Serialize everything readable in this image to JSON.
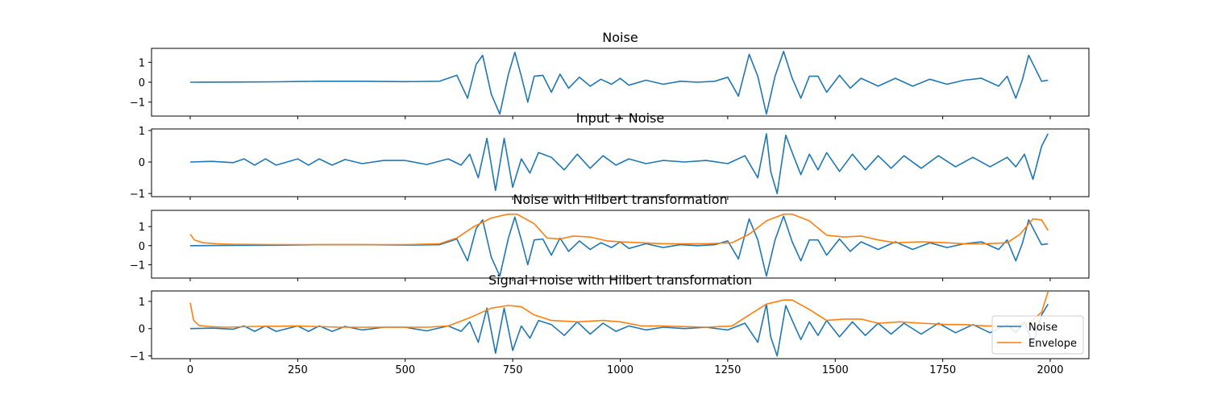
{
  "chart_data": [
    {
      "type": "line",
      "title": "Noise",
      "xlim": [
        -90,
        2090
      ],
      "ylim": [
        -1.7,
        1.7
      ],
      "xticks": [
        0,
        250,
        500,
        750,
        1000,
        1250,
        1500,
        1750,
        2000
      ],
      "xtick_labels": [],
      "yticks": [
        1,
        0,
        -1
      ],
      "ytick_labels": [
        "1",
        "0",
        "−1"
      ],
      "series": [
        {
          "color": "#1f77b4",
          "x": [
            0,
            100,
            200,
            300,
            400,
            500,
            580,
            620,
            645,
            665,
            680,
            700,
            720,
            740,
            755,
            770,
            785,
            800,
            820,
            840,
            860,
            880,
            905,
            930,
            955,
            980,
            1000,
            1020,
            1060,
            1100,
            1140,
            1180,
            1220,
            1250,
            1275,
            1300,
            1320,
            1340,
            1360,
            1380,
            1400,
            1420,
            1440,
            1460,
            1480,
            1510,
            1535,
            1560,
            1600,
            1640,
            1680,
            1720,
            1760,
            1800,
            1840,
            1880,
            1900,
            1920,
            1935,
            1950,
            1965,
            1980,
            1995
          ],
          "y": [
            0,
            0.01,
            0.02,
            0.05,
            0.05,
            0.03,
            0.05,
            0.35,
            -0.8,
            0.9,
            1.35,
            -0.6,
            -1.6,
            0.4,
            1.5,
            0.3,
            -1.0,
            0.3,
            0.35,
            -0.5,
            0.4,
            -0.3,
            0.25,
            -0.2,
            0.15,
            -0.1,
            0.2,
            -0.15,
            0.1,
            -0.1,
            0.05,
            0,
            0.05,
            0.25,
            -0.7,
            1.4,
            0.3,
            -1.6,
            0.3,
            1.55,
            0.2,
            -0.8,
            0.3,
            0.3,
            -0.5,
            0.35,
            -0.3,
            0.2,
            -0.2,
            0.2,
            -0.2,
            0.15,
            -0.1,
            0.1,
            0.2,
            -0.2,
            0.3,
            -0.8,
            0.1,
            1.35,
            0.7,
            0.05,
            0.1
          ]
        }
      ]
    },
    {
      "type": "line",
      "title": "Input + Noise",
      "xlim": [
        -90,
        2090
      ],
      "ylim": [
        -1.1,
        1.05
      ],
      "xticks": [
        0,
        250,
        500,
        750,
        1000,
        1250,
        1500,
        1750,
        2000
      ],
      "xtick_labels": [],
      "yticks": [
        1,
        0,
        -1
      ],
      "ytick_labels": [
        "1",
        "0",
        "−1"
      ],
      "series": [
        {
          "color": "#1f77b4",
          "x": [
            0,
            50,
            100,
            125,
            150,
            175,
            200,
            250,
            275,
            300,
            330,
            360,
            400,
            450,
            500,
            550,
            600,
            630,
            650,
            670,
            690,
            710,
            730,
            750,
            770,
            790,
            810,
            840,
            870,
            900,
            930,
            960,
            990,
            1020,
            1060,
            1100,
            1150,
            1200,
            1250,
            1290,
            1320,
            1340,
            1350,
            1365,
            1385,
            1400,
            1420,
            1440,
            1460,
            1480,
            1510,
            1540,
            1570,
            1600,
            1630,
            1660,
            1700,
            1740,
            1780,
            1820,
            1860,
            1900,
            1920,
            1940,
            1960,
            1980,
            1995
          ],
          "y": [
            0,
            0.02,
            -0.02,
            0.1,
            -0.1,
            0.1,
            -0.1,
            0.1,
            -0.1,
            0.1,
            -0.1,
            0.08,
            -0.05,
            0.05,
            0.05,
            -0.08,
            0.1,
            -0.1,
            0.25,
            -0.5,
            0.75,
            -0.9,
            0.75,
            -0.8,
            0.1,
            -0.35,
            0.3,
            0.15,
            -0.25,
            0.25,
            -0.2,
            0.2,
            -0.1,
            0.1,
            -0.05,
            0.05,
            0,
            0.05,
            -0.05,
            0.2,
            -0.5,
            0.9,
            -0.3,
            -1.0,
            0.85,
            0.3,
            -0.4,
            0.25,
            -0.25,
            0.3,
            -0.3,
            0.25,
            -0.25,
            0.2,
            -0.2,
            0.2,
            -0.2,
            0.2,
            -0.15,
            0.15,
            -0.15,
            0.15,
            -0.15,
            0.25,
            -0.55,
            0.5,
            0.9
          ]
        }
      ]
    },
    {
      "type": "line",
      "title": "Noise with Hilbert transformation",
      "xlim": [
        -90,
        2090
      ],
      "ylim": [
        -1.7,
        1.85
      ],
      "xticks": [
        0,
        250,
        500,
        750,
        1000,
        1250,
        1500,
        1750,
        2000
      ],
      "xtick_labels": [],
      "yticks": [
        1,
        0,
        -1
      ],
      "ytick_labels": [
        "1",
        "0",
        "−1"
      ],
      "series": [
        {
          "name": "Noise",
          "color": "#1f77b4",
          "x": [
            0,
            100,
            200,
            300,
            400,
            500,
            580,
            620,
            645,
            665,
            680,
            700,
            720,
            740,
            755,
            770,
            785,
            800,
            820,
            840,
            860,
            880,
            905,
            930,
            955,
            980,
            1000,
            1020,
            1060,
            1100,
            1140,
            1180,
            1220,
            1250,
            1275,
            1300,
            1320,
            1340,
            1360,
            1380,
            1400,
            1420,
            1440,
            1460,
            1480,
            1510,
            1535,
            1560,
            1600,
            1640,
            1680,
            1720,
            1760,
            1800,
            1840,
            1880,
            1900,
            1920,
            1935,
            1950,
            1965,
            1980,
            1995
          ],
          "y": [
            0,
            0.01,
            0.02,
            0.05,
            0.05,
            0.03,
            0.05,
            0.35,
            -0.8,
            0.9,
            1.35,
            -0.6,
            -1.6,
            0.4,
            1.5,
            0.3,
            -1.0,
            0.3,
            0.35,
            -0.5,
            0.4,
            -0.3,
            0.25,
            -0.2,
            0.15,
            -0.1,
            0.2,
            -0.15,
            0.1,
            -0.1,
            0.05,
            0,
            0.05,
            0.25,
            -0.7,
            1.4,
            0.3,
            -1.6,
            0.3,
            1.55,
            0.2,
            -0.8,
            0.3,
            0.3,
            -0.5,
            0.35,
            -0.3,
            0.2,
            -0.2,
            0.2,
            -0.2,
            0.15,
            -0.1,
            0.1,
            0.2,
            -0.2,
            0.3,
            -0.8,
            0.1,
            1.35,
            0.7,
            0.05,
            0.1
          ]
        },
        {
          "name": "Envelope",
          "color": "#ff7f0e",
          "x": [
            0,
            10,
            30,
            60,
            100,
            200,
            300,
            400,
            500,
            580,
            620,
            660,
            700,
            740,
            760,
            800,
            830,
            860,
            890,
            930,
            970,
            1000,
            1050,
            1100,
            1200,
            1260,
            1300,
            1340,
            1380,
            1400,
            1440,
            1480,
            1520,
            1560,
            1600,
            1640,
            1700,
            1760,
            1800,
            1850,
            1900,
            1930,
            1960,
            1980,
            1995
          ],
          "y": [
            0.6,
            0.3,
            0.15,
            0.1,
            0.07,
            0.05,
            0.05,
            0.05,
            0.05,
            0.1,
            0.4,
            1.0,
            1.45,
            1.65,
            1.65,
            1.15,
            0.4,
            0.35,
            0.5,
            0.45,
            0.25,
            0.2,
            0.15,
            0.1,
            0.1,
            0.15,
            0.6,
            1.3,
            1.65,
            1.65,
            1.3,
            0.55,
            0.45,
            0.5,
            0.3,
            0.15,
            0.2,
            0.15,
            0.1,
            0.1,
            0.15,
            0.6,
            1.4,
            1.35,
            0.8
          ]
        }
      ]
    },
    {
      "type": "line",
      "title": "Signal+noise with Hilbert transformation",
      "xlim": [
        -90,
        2090
      ],
      "ylim": [
        -1.1,
        1.38
      ],
      "xticks": [
        0,
        250,
        500,
        750,
        1000,
        1250,
        1500,
        1750,
        2000
      ],
      "xtick_labels": [
        "0",
        "250",
        "500",
        "750",
        "1000",
        "1250",
        "1500",
        "1750",
        "2000"
      ],
      "yticks": [
        1,
        0,
        -1
      ],
      "ytick_labels": [
        "1",
        "0",
        "−1"
      ],
      "legend": {
        "position": "lower-right",
        "entries": [
          "Noise",
          "Envelope"
        ]
      },
      "series": [
        {
          "name": "Noise",
          "color": "#1f77b4",
          "x": [
            0,
            50,
            100,
            125,
            150,
            175,
            200,
            250,
            275,
            300,
            330,
            360,
            400,
            450,
            500,
            550,
            600,
            630,
            650,
            670,
            690,
            710,
            730,
            750,
            770,
            790,
            810,
            840,
            870,
            900,
            930,
            960,
            990,
            1020,
            1060,
            1100,
            1150,
            1200,
            1250,
            1290,
            1320,
            1340,
            1350,
            1365,
            1385,
            1400,
            1420,
            1440,
            1460,
            1480,
            1510,
            1540,
            1570,
            1600,
            1630,
            1660,
            1700,
            1740,
            1780,
            1820,
            1860,
            1900,
            1920,
            1940,
            1960,
            1980,
            1995
          ],
          "y": [
            0,
            0.02,
            -0.02,
            0.1,
            -0.1,
            0.1,
            -0.1,
            0.1,
            -0.1,
            0.1,
            -0.1,
            0.08,
            -0.05,
            0.05,
            0.05,
            -0.08,
            0.1,
            -0.1,
            0.25,
            -0.5,
            0.75,
            -0.9,
            0.75,
            -0.8,
            0.1,
            -0.35,
            0.3,
            0.15,
            -0.25,
            0.25,
            -0.2,
            0.2,
            -0.1,
            0.1,
            -0.05,
            0.05,
            0,
            0.05,
            -0.05,
            0.2,
            -0.5,
            0.9,
            -0.3,
            -1.0,
            0.85,
            0.3,
            -0.4,
            0.25,
            -0.25,
            0.3,
            -0.3,
            0.25,
            -0.25,
            0.2,
            -0.2,
            0.2,
            -0.2,
            0.2,
            -0.15,
            0.15,
            -0.15,
            0.15,
            -0.15,
            0.25,
            -0.55,
            0.5,
            0.9
          ]
        },
        {
          "name": "Envelope",
          "color": "#ff7f0e",
          "x": [
            0,
            8,
            20,
            40,
            80,
            150,
            250,
            350,
            450,
            550,
            600,
            650,
            700,
            740,
            770,
            800,
            840,
            900,
            960,
            1000,
            1050,
            1100,
            1200,
            1260,
            1300,
            1340,
            1380,
            1400,
            1440,
            1480,
            1520,
            1560,
            1600,
            1650,
            1700,
            1760,
            1800,
            1850,
            1900,
            1950,
            1980,
            1995
          ],
          "y": [
            0.95,
            0.3,
            0.12,
            0.08,
            0.05,
            0.08,
            0.1,
            0.05,
            0.05,
            0.05,
            0.1,
            0.4,
            0.75,
            0.85,
            0.8,
            0.5,
            0.3,
            0.25,
            0.3,
            0.25,
            0.1,
            0.1,
            0.05,
            0.1,
            0.5,
            0.9,
            1.05,
            1.05,
            0.7,
            0.3,
            0.35,
            0.35,
            0.2,
            0.25,
            0.2,
            0.15,
            0.15,
            0.1,
            0.1,
            0.2,
            0.6,
            1.35
          ]
        }
      ]
    }
  ]
}
